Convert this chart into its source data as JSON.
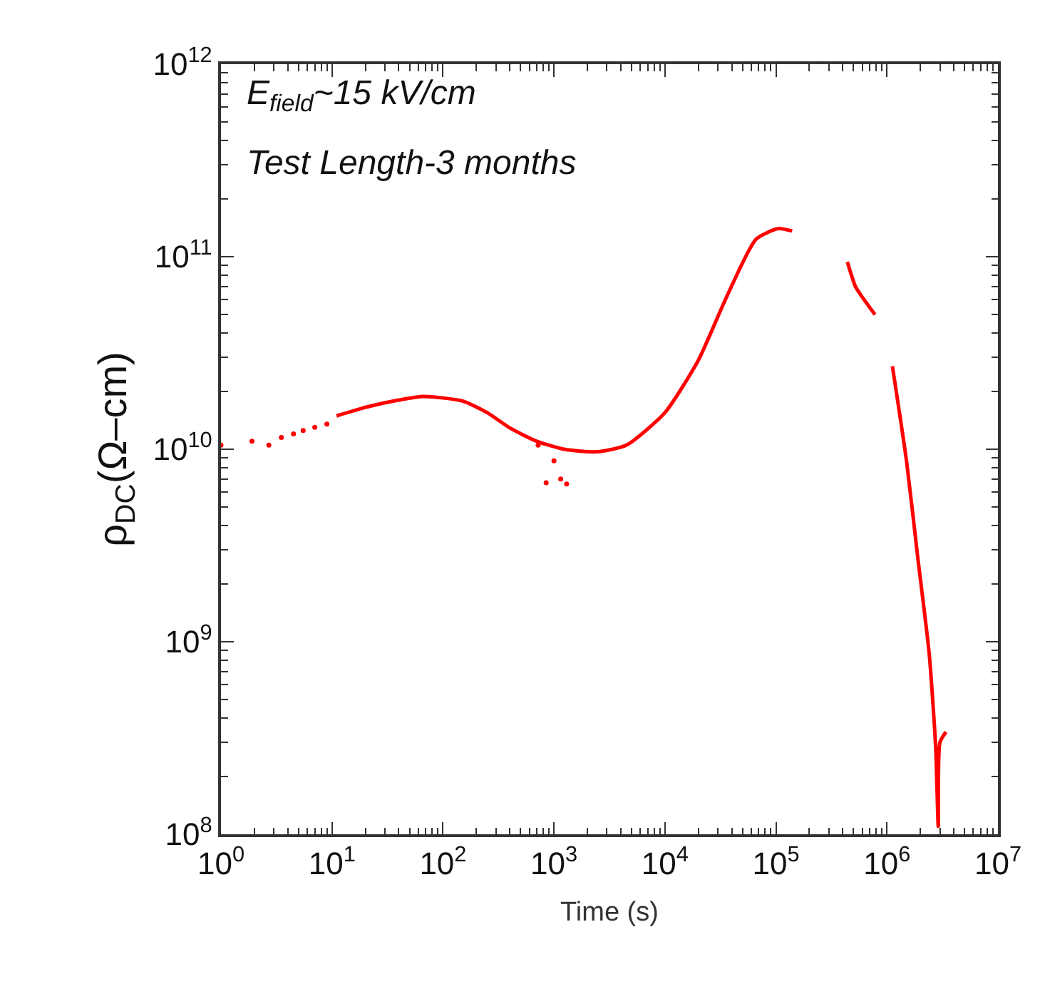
{
  "chart_data": {
    "type": "line",
    "xlabel": "Time (s)",
    "ylabel": "ρ$_{DC}$(Ω–cm)",
    "log": "xy",
    "marker": "none",
    "annotations": [
      "E$_{field}$~15 kV/cm",
      "Test Length-3 months"
    ],
    "xlim": [
      1,
      10000000
    ],
    "ylim": [
      100000000,
      1000000000000
    ],
    "xticks": [
      {
        "value": 1,
        "label": "10$^{0}$"
      },
      {
        "value": 10,
        "label": "10$^{1}$"
      },
      {
        "value": 100,
        "label": "10$^{2}$"
      },
      {
        "value": 1000,
        "label": "10$^{3}$"
      },
      {
        "value": 10000,
        "label": "10$^{4}$"
      },
      {
        "value": 100000,
        "label": "10$^{5}$"
      },
      {
        "value": 1000000,
        "label": "10$^{6}$"
      },
      {
        "value": 10000000,
        "label": "10$^{7}$"
      }
    ],
    "yticks": [
      {
        "value": 100000000,
        "label": "10$^{8}$"
      },
      {
        "value": 1000000000,
        "label": "10$^{9}$"
      },
      {
        "value": 10000000000,
        "label": "10$^{10}$"
      },
      {
        "value": 100000000000,
        "label": "10$^{11}$"
      },
      {
        "value": 1000000000000,
        "label": "10$^{12}$"
      }
    ],
    "series": [
      {
        "color": "#ff0000",
        "x": [
          11,
          20,
          40,
          67,
          150,
          250,
          400,
          700,
          1230,
          2450,
          4500,
          10000,
          20000,
          36000,
          66000,
          105000,
          140000,
          null,
          440000,
          520000,
          620000,
          780000,
          null,
          1120000,
          1500000,
          1900000,
          2400000,
          2750000,
          2900000,
          3000000,
          3400000
        ],
        "values": [
          14900000000,
          16500000000,
          18000000000,
          18800000000,
          17800000000,
          15500000000,
          12900000000,
          11000000000,
          10000000000,
          9700000000,
          10500000000,
          15500000000,
          29000000000,
          62000000000,
          123000000000,
          140000000000,
          136000000000,
          null,
          94000000000,
          70000000000,
          60000000000,
          50000000000,
          null,
          27000000000,
          8700000000,
          2700000000,
          870000000,
          280000000,
          110000000,
          300000000,
          340000000
        ]
      },
      {
        "type": "scatter",
        "color": "#ff0000",
        "x": [
          1,
          1.9,
          2.7,
          3.5,
          4.5,
          5.5,
          7,
          9,
          720,
          1000,
          850,
          1150,
          1300
        ],
        "values": [
          10500000000,
          11000000000,
          10500000000,
          11500000000,
          12000000000,
          12500000000,
          13000000000,
          13500000000,
          10500000000,
          8700000000,
          6700000000,
          7000000000,
          6600000000
        ]
      }
    ]
  }
}
